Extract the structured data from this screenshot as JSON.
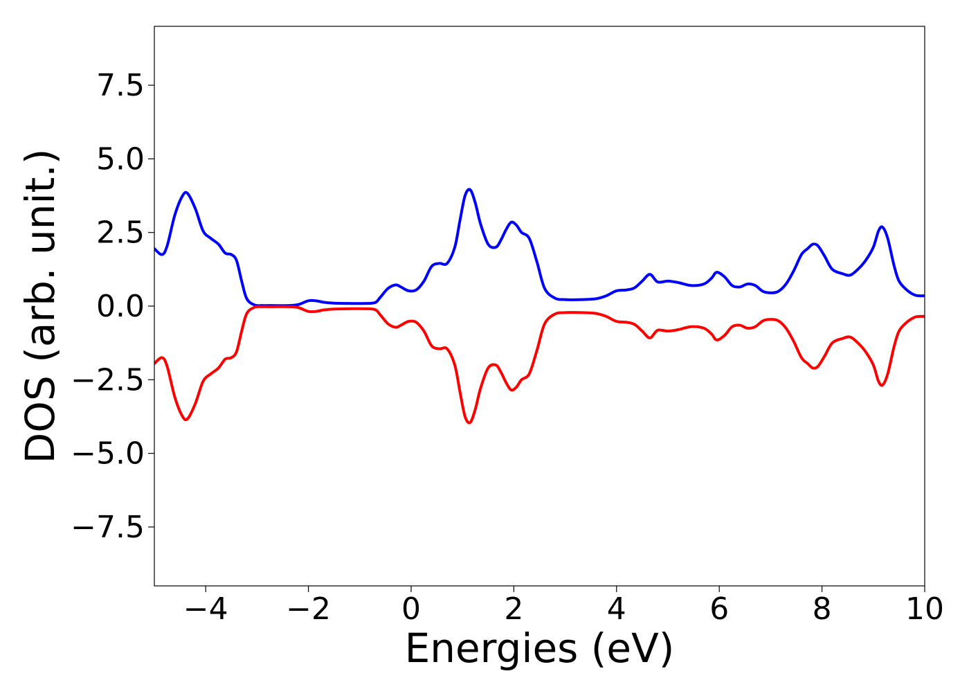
{
  "chart_data": {
    "type": "line",
    "title": "",
    "xlabel": "Energies (eV)",
    "ylabel": "DOS (arb. unit.)",
    "xlim": [
      -5,
      10
    ],
    "ylim": [
      -9.5,
      9.5
    ],
    "grid": false,
    "legend": "none",
    "xticks": [
      -4,
      -2,
      0,
      2,
      4,
      6,
      8,
      10
    ],
    "yticks": [
      -7.5,
      -5.0,
      -2.5,
      0.0,
      2.5,
      5.0,
      7.5
    ],
    "xtick_labels": [
      "−4",
      "−2",
      "0",
      "2",
      "4",
      "6",
      "8",
      "10"
    ],
    "ytick_labels": [
      "−7.5",
      "−5.0",
      "−2.5",
      "0.0",
      "2.5",
      "5.0",
      "7.5"
    ],
    "series": [
      {
        "color": "#0000ff",
        "x": [
          -5.0,
          -4.85,
          -4.75,
          -4.6,
          -4.45,
          -4.35,
          -4.2,
          -4.05,
          -3.9,
          -3.75,
          -3.62,
          -3.5,
          -3.4,
          -3.3,
          -3.2,
          -3.05,
          -2.9,
          -2.7,
          -2.4,
          -2.2,
          -2.0,
          -1.85,
          -1.7,
          -1.5,
          -1.2,
          -0.9,
          -0.7,
          -0.6,
          -0.45,
          -0.3,
          -0.2,
          -0.05,
          0.1,
          0.25,
          0.4,
          0.55,
          0.7,
          0.85,
          0.95,
          1.05,
          1.15,
          1.25,
          1.35,
          1.5,
          1.65,
          1.75,
          1.85,
          1.95,
          2.05,
          2.15,
          2.3,
          2.45,
          2.6,
          2.8,
          3.0,
          3.3,
          3.6,
          3.8,
          4.0,
          4.2,
          4.35,
          4.5,
          4.65,
          4.8,
          5.0,
          5.2,
          5.45,
          5.7,
          5.85,
          5.95,
          6.1,
          6.25,
          6.4,
          6.55,
          6.7,
          6.85,
          7.0,
          7.15,
          7.3,
          7.45,
          7.6,
          7.72,
          7.82,
          7.92,
          8.05,
          8.2,
          8.4,
          8.55,
          8.7,
          8.85,
          9.0,
          9.1,
          9.18,
          9.28,
          9.4,
          9.5,
          9.65,
          9.8,
          9.9,
          10.0
        ],
        "values": [
          1.95,
          1.75,
          2.05,
          3.1,
          3.75,
          3.82,
          3.3,
          2.55,
          2.3,
          2.1,
          1.8,
          1.75,
          1.55,
          0.85,
          0.25,
          0.04,
          0.02,
          0.02,
          0.02,
          0.05,
          0.18,
          0.18,
          0.13,
          0.1,
          0.09,
          0.09,
          0.12,
          0.3,
          0.6,
          0.72,
          0.65,
          0.52,
          0.55,
          0.85,
          1.35,
          1.45,
          1.45,
          2.0,
          2.9,
          3.75,
          3.95,
          3.5,
          2.8,
          2.1,
          2.0,
          2.25,
          2.6,
          2.85,
          2.75,
          2.5,
          2.3,
          1.5,
          0.6,
          0.27,
          0.22,
          0.22,
          0.25,
          0.35,
          0.52,
          0.55,
          0.62,
          0.85,
          1.08,
          0.82,
          0.85,
          0.8,
          0.7,
          0.75,
          0.95,
          1.15,
          1.0,
          0.7,
          0.65,
          0.75,
          0.7,
          0.5,
          0.45,
          0.5,
          0.75,
          1.2,
          1.75,
          1.95,
          2.1,
          2.05,
          1.7,
          1.25,
          1.1,
          1.05,
          1.25,
          1.55,
          2.0,
          2.55,
          2.68,
          2.3,
          1.4,
          0.85,
          0.55,
          0.38,
          0.35,
          0.35
        ]
      },
      {
        "color": "#ff0000",
        "x": [
          -5.0,
          -4.85,
          -4.75,
          -4.6,
          -4.45,
          -4.35,
          -4.2,
          -4.05,
          -3.9,
          -3.75,
          -3.62,
          -3.5,
          -3.4,
          -3.3,
          -3.2,
          -3.05,
          -2.9,
          -2.7,
          -2.4,
          -2.2,
          -2.0,
          -1.85,
          -1.7,
          -1.5,
          -1.2,
          -0.9,
          -0.7,
          -0.6,
          -0.45,
          -0.3,
          -0.2,
          -0.05,
          0.1,
          0.25,
          0.4,
          0.55,
          0.7,
          0.85,
          0.95,
          1.05,
          1.15,
          1.25,
          1.35,
          1.5,
          1.65,
          1.75,
          1.85,
          1.95,
          2.05,
          2.15,
          2.3,
          2.45,
          2.6,
          2.8,
          3.0,
          3.3,
          3.6,
          3.8,
          4.0,
          4.2,
          4.35,
          4.5,
          4.65,
          4.8,
          5.0,
          5.2,
          5.45,
          5.7,
          5.85,
          5.95,
          6.1,
          6.25,
          6.4,
          6.55,
          6.7,
          6.85,
          7.0,
          7.15,
          7.3,
          7.45,
          7.6,
          7.72,
          7.82,
          7.92,
          8.05,
          8.2,
          8.4,
          8.55,
          8.7,
          8.85,
          9.0,
          9.1,
          9.18,
          9.28,
          9.4,
          9.5,
          9.65,
          9.8,
          9.9,
          10.0
        ],
        "values": [
          -1.95,
          -1.75,
          -2.05,
          -3.1,
          -3.75,
          -3.82,
          -3.3,
          -2.55,
          -2.3,
          -2.1,
          -1.8,
          -1.75,
          -1.55,
          -0.85,
          -0.25,
          -0.04,
          -0.02,
          -0.02,
          -0.02,
          -0.05,
          -0.18,
          -0.18,
          -0.13,
          -0.1,
          -0.09,
          -0.09,
          -0.12,
          -0.3,
          -0.6,
          -0.72,
          -0.65,
          -0.52,
          -0.55,
          -0.85,
          -1.35,
          -1.45,
          -1.45,
          -2.0,
          -2.9,
          -3.75,
          -3.95,
          -3.5,
          -2.8,
          -2.1,
          -2.0,
          -2.25,
          -2.6,
          -2.85,
          -2.75,
          -2.5,
          -2.3,
          -1.5,
          -0.6,
          -0.27,
          -0.22,
          -0.22,
          -0.25,
          -0.35,
          -0.52,
          -0.55,
          -0.62,
          -0.85,
          -1.08,
          -0.82,
          -0.85,
          -0.8,
          -0.7,
          -0.75,
          -0.95,
          -1.15,
          -1.0,
          -0.7,
          -0.65,
          -0.75,
          -0.7,
          -0.5,
          -0.45,
          -0.5,
          -0.75,
          -1.2,
          -1.75,
          -1.95,
          -2.1,
          -2.05,
          -1.7,
          -1.25,
          -1.1,
          -1.05,
          -1.25,
          -1.55,
          -2.0,
          -2.55,
          -2.68,
          -2.3,
          -1.4,
          -0.85,
          -0.55,
          -0.38,
          -0.35,
          -0.35
        ]
      }
    ]
  }
}
